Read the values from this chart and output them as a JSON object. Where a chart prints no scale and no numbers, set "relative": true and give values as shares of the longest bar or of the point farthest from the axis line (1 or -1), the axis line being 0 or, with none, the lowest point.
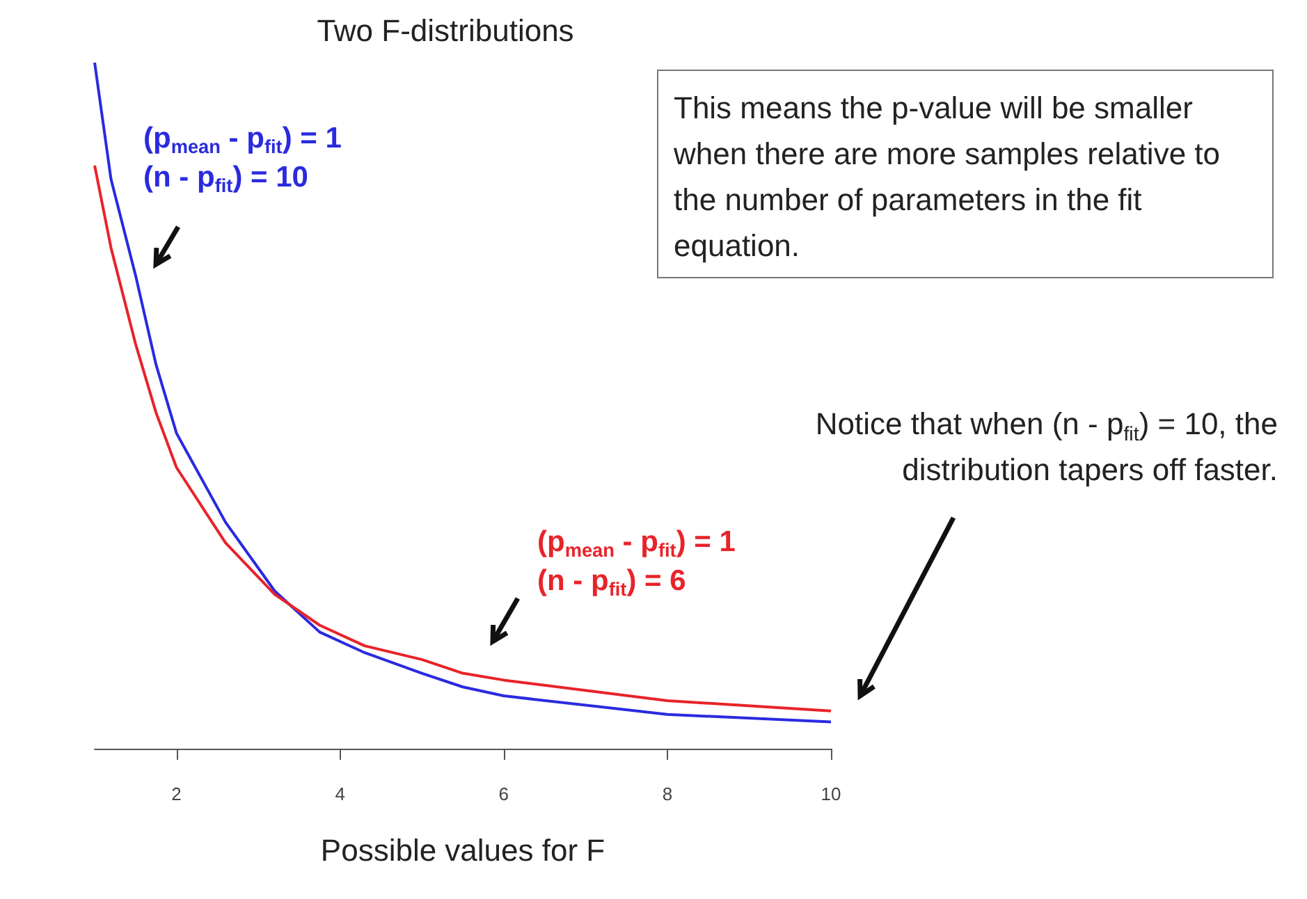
{
  "chart_data": {
    "type": "line",
    "title": "Two F-distributions",
    "xlabel": "Possible values for F",
    "relative": true,
    "marker": "none",
    "line_style": "solid",
    "tick_labels": "x",
    "x": [
      1,
      1.2,
      1.5,
      1.75,
      2,
      2.6,
      3.2,
      3.75,
      4.3,
      5,
      5.5,
      6,
      8,
      10
    ],
    "xlim": [
      1,
      10
    ],
    "xticks": [
      2,
      4,
      6,
      8,
      10
    ],
    "series": [
      {
        "name": "(p$_{mean}$ - p$_{fit}$) = 1\n(n - p$_{fit}$) = 10",
        "color": "#2a2ae0",
        "values": [
          1,
          0.83,
          0.69,
          0.56,
          0.46,
          0.33,
          0.23,
          0.17,
          0.14,
          0.11,
          0.09,
          0.077,
          0.05,
          0.039
        ]
      },
      {
        "name": "(p$_{mean}$ - p$_{fit}$) = 1\n(n - p$_{fit}$) = 6",
        "color": "#e8232a",
        "values": [
          0.85,
          0.73,
          0.59,
          0.49,
          0.41,
          0.3,
          0.225,
          0.18,
          0.15,
          0.13,
          0.11,
          0.1,
          0.07,
          0.055
        ]
      }
    ],
    "annotations": [
      "This means the p-value will be smaller when there are more samples relative to the number of parameters in the fit equation.",
      "Notice that when (n - p$_{fit}$) = 10, the distribution tapers off faster."
    ]
  }
}
